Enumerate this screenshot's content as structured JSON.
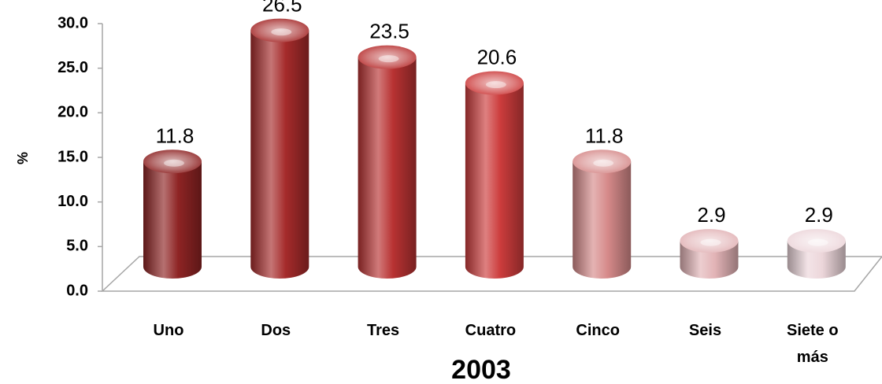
{
  "chart_data": {
    "type": "bar",
    "title": "2003",
    "ylabel": "%",
    "xlabel": "",
    "ylim": [
      0,
      30
    ],
    "yticks": [
      "0.0",
      "5.0",
      "10.0",
      "15.0",
      "20.0",
      "25.0",
      "30.0"
    ],
    "grid": false,
    "categories": [
      "Uno",
      "Dos",
      "Tres",
      "Cuatro",
      "Cinco",
      "Seis",
      "Siete o más"
    ],
    "category_label_lines": [
      [
        "Uno"
      ],
      [
        "Dos"
      ],
      [
        "Tres"
      ],
      [
        "Cuatro"
      ],
      [
        "Cinco"
      ],
      [
        "Seis"
      ],
      [
        "Siete o",
        "más"
      ]
    ],
    "values": [
      11.8,
      26.5,
      23.5,
      20.6,
      11.8,
      2.9,
      2.9
    ],
    "value_labels": [
      "11.8",
      "26.5",
      "23.5",
      "20.6",
      "11.8",
      "2.9",
      "2.9"
    ],
    "colors": [
      "#8e2424",
      "#a52b2b",
      "#b83232",
      "#cc3c3c",
      "#d68a8a",
      "#e2b3b6",
      "#ecd6da"
    ]
  }
}
